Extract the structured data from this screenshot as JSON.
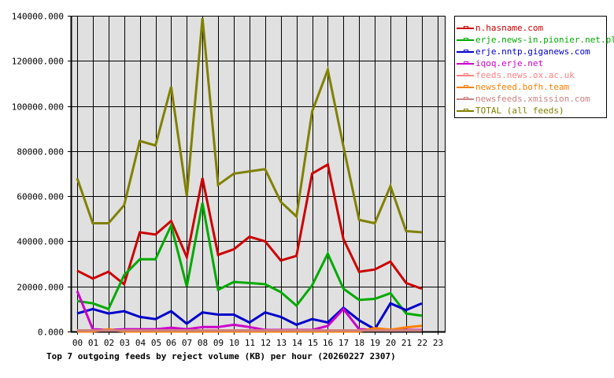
{
  "chart_data": {
    "type": "line",
    "title": "Top 7 outgoing feeds by reject volume (KB) per hour (20260227 2307)",
    "xlabel": "",
    "ylabel": "",
    "x": [
      "00",
      "01",
      "02",
      "03",
      "04",
      "05",
      "06",
      "07",
      "08",
      "09",
      "10",
      "11",
      "12",
      "13",
      "14",
      "15",
      "16",
      "17",
      "18",
      "19",
      "20",
      "21",
      "22",
      "23"
    ],
    "ylim": [
      0,
      140000
    ],
    "yticks": [
      "0.000",
      "20000.000",
      "40000.000",
      "60000.000",
      "80000.000",
      "100000.000",
      "120000.000",
      "140000.000"
    ],
    "grid": true,
    "legend_position": "right",
    "series": [
      {
        "name": "n.hasname.com",
        "color": "#cc0000",
        "values": [
          27000,
          23500,
          26500,
          21000,
          44000,
          43000,
          49000,
          33000,
          68000,
          34000,
          36500,
          42000,
          40000,
          31500,
          33500,
          70000,
          74000,
          41000,
          26500,
          27500,
          31000,
          21500,
          19000,
          null
        ]
      },
      {
        "name": "erje.news-in.pionier.net.pl",
        "color": "#00aa00",
        "values": [
          13500,
          12500,
          10000,
          25000,
          32000,
          32000,
          47000,
          20000,
          57000,
          18500,
          22000,
          21500,
          21000,
          17500,
          11500,
          20500,
          34500,
          19000,
          14000,
          14500,
          17000,
          8000,
          7000,
          null
        ]
      },
      {
        "name": "erje.nntp.giganews.com",
        "color": "#0000cc",
        "values": [
          8000,
          10000,
          8000,
          9000,
          6500,
          5500,
          9000,
          3500,
          8500,
          7500,
          7500,
          4000,
          8500,
          6500,
          3000,
          5500,
          4000,
          10500,
          5000,
          1000,
          12500,
          9500,
          12500,
          null
        ]
      },
      {
        "name": "iqoq.erje.net",
        "color": "#cc00cc",
        "values": [
          18000,
          1000,
          700,
          1000,
          1000,
          1000,
          1700,
          1000,
          2000,
          2000,
          3000,
          2000,
          700,
          700,
          700,
          700,
          2500,
          10000,
          1000,
          700,
          700,
          700,
          700,
          null
        ]
      },
      {
        "name": "feeds.news.ox.ac.uk",
        "color": "#ff8080",
        "values": [
          500,
          500,
          500,
          500,
          500,
          500,
          500,
          500,
          500,
          500,
          500,
          500,
          500,
          500,
          500,
          500,
          500,
          500,
          500,
          500,
          500,
          500,
          500,
          null
        ]
      },
      {
        "name": "newsfeed.bofh.team",
        "color": "#ff7f00",
        "values": [
          0,
          0,
          1000,
          0,
          0,
          0,
          0,
          0,
          0,
          0,
          0,
          0,
          0,
          0,
          0,
          0,
          0,
          0,
          0,
          1500,
          800,
          1800,
          2500,
          null
        ]
      },
      {
        "name": "newsfeeds.xmission.com",
        "color": "#cc8080",
        "values": [
          500,
          500,
          500,
          500,
          500,
          500,
          500,
          500,
          500,
          500,
          500,
          500,
          500,
          500,
          500,
          500,
          500,
          500,
          500,
          500,
          500,
          500,
          500,
          null
        ]
      },
      {
        "name": "TOTAL (all feeds)",
        "color": "#808000",
        "values": [
          68000,
          48000,
          48000,
          56000,
          84500,
          82500,
          108500,
          60000,
          139000,
          65000,
          70000,
          71000,
          72000,
          57500,
          51000,
          97500,
          116000,
          82000,
          49500,
          48000,
          64500,
          44500,
          44000,
          null
        ]
      }
    ]
  },
  "legend": {
    "items": [
      {
        "label": "n.hasname.com",
        "color": "#cc0000"
      },
      {
        "label": "erje.news-in.pionier.net.pl",
        "color": "#00aa00"
      },
      {
        "label": "erje.nntp.giganews.com",
        "color": "#0000cc"
      },
      {
        "label": "iqoq.erje.net",
        "color": "#cc00cc"
      },
      {
        "label": "feeds.news.ox.ac.uk",
        "color": "#ff8080"
      },
      {
        "label": "newsfeed.bofh.team",
        "color": "#ff7f00"
      },
      {
        "label": "newsfeeds.xmission.com",
        "color": "#cc8080"
      },
      {
        "label": "TOTAL (all feeds)",
        "color": "#808000"
      }
    ]
  },
  "colors": {
    "plot_background": "#e0e0e0",
    "grid": "#000000",
    "page_background": "#ffffff"
  }
}
